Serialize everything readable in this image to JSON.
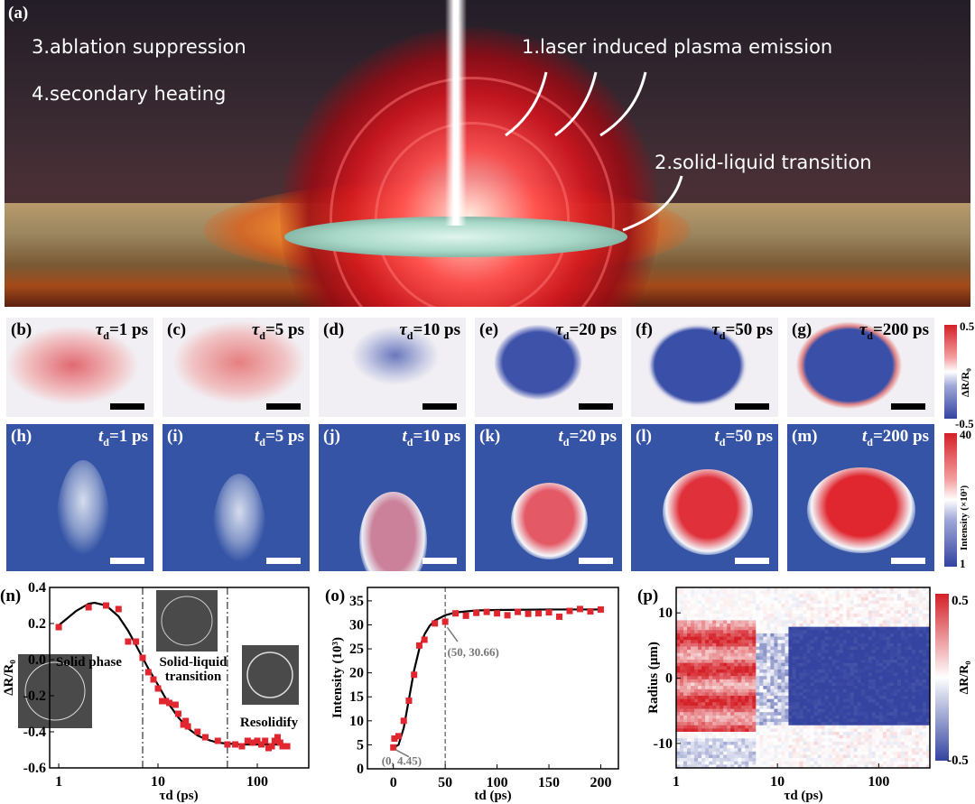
{
  "panel_a": {
    "label": "(a)",
    "texts": [
      "3.ablation suppression",
      "4.secondary heating",
      "1.laser induced plasma emission",
      "2.solid-liquid transition"
    ]
  },
  "row_reflectivity": [
    {
      "label": "(b)",
      "sym": "τ",
      "sub": "d",
      "val": "=1 ps"
    },
    {
      "label": "(c)",
      "sym": "τ",
      "sub": "d",
      "val": "=5 ps"
    },
    {
      "label": "(d)",
      "sym": "τ",
      "sub": "d",
      "val": "=10 ps"
    },
    {
      "label": "(e)",
      "sym": "τ",
      "sub": "d",
      "val": "=20 ps"
    },
    {
      "label": "(f)",
      "sym": "τ",
      "sub": "d",
      "val": "=50 ps"
    },
    {
      "label": "(g)",
      "sym": "τ",
      "sub": "d",
      "val": "=200 ps"
    }
  ],
  "row_intensity": [
    {
      "label": "(h)",
      "sym": "t",
      "sub": "d",
      "val": "=1 ps"
    },
    {
      "label": "(i)",
      "sym": "t",
      "sub": "d",
      "val": "=5 ps"
    },
    {
      "label": "(j)",
      "sym": "t",
      "sub": "d",
      "val": "=10 ps"
    },
    {
      "label": "(k)",
      "sym": "t",
      "sub": "d",
      "val": "=20 ps"
    },
    {
      "label": "(l)",
      "sym": "t",
      "sub": "d",
      "val": "=50 ps"
    },
    {
      "label": "(m)",
      "sym": "t",
      "sub": "d",
      "val": "=200 ps"
    }
  ],
  "colorbar_reflectivity": {
    "max": "0.5",
    "min": "-0.5",
    "label": "ΔR/R₀"
  },
  "colorbar_intensity": {
    "max": "40",
    "min": "1",
    "label": "Intensity (×10³)"
  },
  "colors": {
    "marker": "#e0262e",
    "red": "#d42027",
    "blue": "#3554a5",
    "fit": "#000000"
  },
  "chart_data": [
    {
      "panel": "(n)",
      "type": "scatter",
      "xlabel": "τd (ps)",
      "ylabel": "ΔR/R₀",
      "xscale": "log",
      "xlim": [
        0.81,
        330
      ],
      "ylim": [
        -0.6,
        0.4
      ],
      "xticks": [
        "1",
        "10",
        "100"
      ],
      "yticks": [
        "0.4",
        "0.2",
        "0.0",
        "-0.2",
        "-0.4",
        "-0.6"
      ],
      "x": [
        1,
        2,
        3,
        4,
        5,
        6,
        7,
        8,
        9,
        10,
        11,
        12,
        13,
        15,
        16,
        18,
        19,
        20,
        25,
        30,
        40,
        50,
        60,
        70,
        80,
        90,
        100,
        110,
        120,
        130,
        140,
        150,
        160,
        170,
        180,
        200
      ],
      "y": [
        0.18,
        0.29,
        0.3,
        0.28,
        0.1,
        0.1,
        0.01,
        -0.07,
        -0.11,
        -0.16,
        -0.23,
        -0.23,
        -0.24,
        -0.25,
        -0.3,
        -0.36,
        -0.34,
        -0.37,
        -0.4,
        -0.43,
        -0.45,
        -0.47,
        -0.47,
        -0.48,
        -0.45,
        -0.46,
        -0.45,
        -0.47,
        -0.45,
        -0.49,
        -0.48,
        -0.45,
        -0.43,
        -0.46,
        -0.48,
        -0.48
      ],
      "fit": {
        "x": [
          1,
          1.5,
          2,
          2.3,
          3,
          4,
          5,
          6,
          7,
          8,
          10,
          13,
          16,
          20,
          25,
          30,
          40,
          50,
          70,
          100,
          200
        ],
        "y": [
          0.19,
          0.27,
          0.31,
          0.315,
          0.3,
          0.24,
          0.16,
          0.08,
          0.01,
          -0.05,
          -0.14,
          -0.25,
          -0.32,
          -0.38,
          -0.42,
          -0.44,
          -0.46,
          -0.465,
          -0.47,
          -0.47,
          -0.47
        ]
      },
      "vlines": [
        7,
        50
      ],
      "annotations": [
        "Solid phase",
        "Solid-liquid",
        "transition",
        "Resolidify"
      ]
    },
    {
      "panel": "(o)",
      "type": "scatter",
      "xlabel": "td (ps)",
      "ylabel": "Intensity (10³)",
      "xlim": [
        -25,
        217
      ],
      "ylim": [
        0,
        37.8
      ],
      "xticks": [
        "0",
        "50",
        "100",
        "150",
        "200"
      ],
      "yticks": [
        "0",
        "5",
        "10",
        "15",
        "20",
        "25",
        "30",
        "35"
      ],
      "x": [
        0,
        1,
        5,
        10,
        15,
        20,
        25,
        30,
        40,
        50,
        60,
        70,
        80,
        90,
        100,
        110,
        120,
        130,
        140,
        150,
        160,
        170,
        180,
        190,
        200
      ],
      "y": [
        4.45,
        6.3,
        6.8,
        10.0,
        14.2,
        19.6,
        25.7,
        26.9,
        30.3,
        30.66,
        32.4,
        31.9,
        32.5,
        32.7,
        32.4,
        32.0,
        32.7,
        32.3,
        32.4,
        32.6,
        31.7,
        32.9,
        33.3,
        32.8,
        33.2
      ],
      "fit": {
        "x": [
          0,
          5,
          10,
          15,
          20,
          25,
          30,
          35,
          40,
          50,
          60,
          80,
          100,
          150,
          200
        ],
        "y": [
          4.4,
          5.0,
          8.5,
          14.5,
          20.5,
          25.0,
          28.0,
          29.8,
          30.9,
          32.0,
          32.6,
          33.0,
          33.1,
          33.2,
          33.2
        ]
      },
      "vlines": [
        50
      ],
      "annotations": [
        "(50, 30.66)",
        "(0, 4.45)"
      ]
    },
    {
      "panel": "(p)",
      "type": "heatmap",
      "xlabel": "τd (ps)",
      "ylabel": "Radius (μm)",
      "xscale": "log",
      "xlim": [
        1,
        320
      ],
      "ylim": [
        -13.75,
        13.9
      ],
      "xticks": [
        "1",
        "10",
        "100"
      ],
      "yticks": [
        "10",
        "0",
        "-10"
      ],
      "colorbar": {
        "max": "0.5",
        "min": "-0.5",
        "label": "ΔR/R₀"
      }
    }
  ]
}
